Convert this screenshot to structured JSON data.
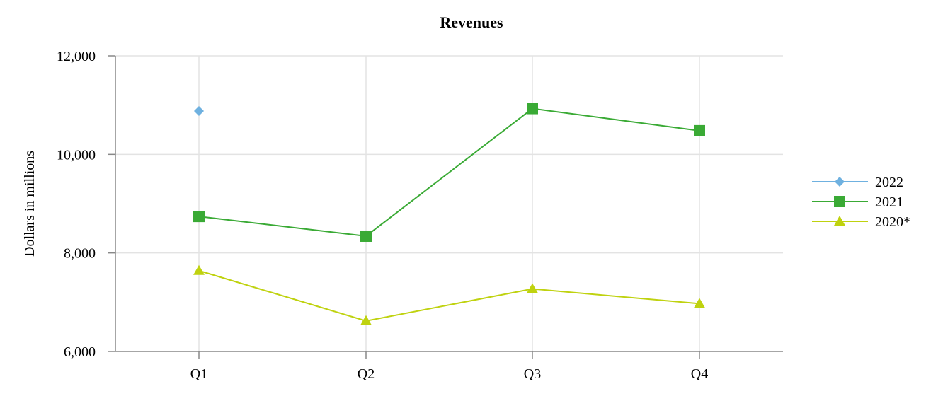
{
  "chart_data": {
    "type": "line",
    "title": "Revenues",
    "xlabel": "",
    "ylabel": "Dollars in millions",
    "categories": [
      "Q1",
      "Q2",
      "Q3",
      "Q4"
    ],
    "ylim": [
      6000,
      12000
    ],
    "yticks": [
      6000,
      8000,
      10000,
      12000
    ],
    "ytick_labels": [
      "6,000",
      "8,000",
      "10,000",
      "12,000"
    ],
    "grid": true,
    "legend_position": "right",
    "series": [
      {
        "name": "2022",
        "values": [
          10880,
          null,
          null,
          null
        ],
        "color": "#6fb1e0",
        "marker": "diamond"
      },
      {
        "name": "2021",
        "values": [
          8740,
          8340,
          10930,
          10480
        ],
        "color": "#3aaa35",
        "marker": "square"
      },
      {
        "name": "2020*",
        "values": [
          7640,
          6620,
          7270,
          6970
        ],
        "color": "#bfd20f",
        "marker": "triangle"
      }
    ]
  }
}
